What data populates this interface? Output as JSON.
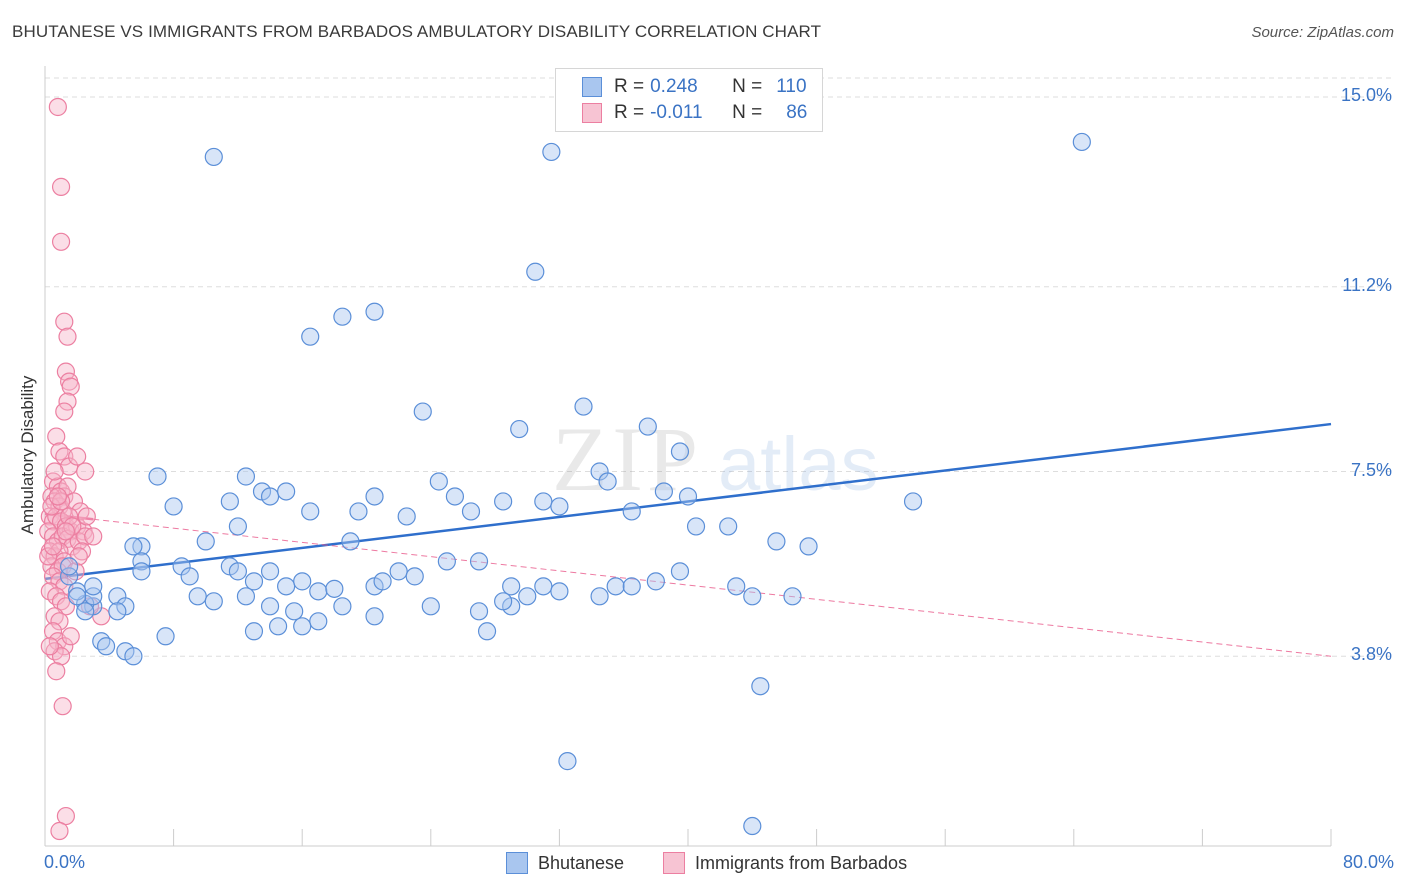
{
  "title": "BHUTANESE VS IMMIGRANTS FROM BARBADOS AMBULATORY DISABILITY CORRELATION CHART",
  "source": "Source: ZipAtlas.com",
  "watermark": {
    "zip": "ZIP",
    "atlas": "atlas"
  },
  "legend": {
    "series1": {
      "r_label": "R =",
      "r_value": "0.248",
      "n_label": "N =",
      "n_value": "110"
    },
    "series2": {
      "r_label": "R =",
      "r_value": "-0.011",
      "n_label": "N =",
      "n_value": "86"
    }
  },
  "chart_data": {
    "type": "scatter",
    "title": "BHUTANESE VS IMMIGRANTS FROM BARBADOS AMBULATORY DISABILITY CORRELATION CHART",
    "xlabel": "",
    "ylabel": "Ambulatory Disability",
    "xlim": [
      0,
      80
    ],
    "ylim": [
      0,
      15.5
    ],
    "x_tick_labels": {
      "left": "0.0%",
      "right": "80.0%"
    },
    "y_ticks": [
      {
        "value": 3.8,
        "label": "3.8%"
      },
      {
        "value": 7.5,
        "label": "7.5%"
      },
      {
        "value": 11.2,
        "label": "11.2%"
      },
      {
        "value": 15.0,
        "label": "15.0%"
      }
    ],
    "colors": {
      "bhutanese_fill": "#a9c6ef",
      "bhutanese_stroke": "#5b8fd8",
      "bhutanese_line": "#2f6fcc",
      "barbados_fill": "#f7b6c9",
      "barbados_stroke": "#ec7fa1",
      "barbados_line": "#e9578a",
      "tick_label": "#3a73c4",
      "grid": "#dddddd"
    },
    "series": [
      {
        "name": "Bhutanese",
        "trend": {
          "x": [
            0,
            80
          ],
          "y": [
            5.35,
            8.45
          ]
        },
        "points": [
          [
            10.5,
            13.8
          ],
          [
            31.5,
            13.9
          ],
          [
            64.5,
            14.1
          ],
          [
            30.5,
            11.5
          ],
          [
            16.5,
            10.2
          ],
          [
            18.5,
            10.6
          ],
          [
            20.5,
            10.7
          ],
          [
            23.5,
            8.7
          ],
          [
            33.5,
            8.8
          ],
          [
            29.5,
            8.35
          ],
          [
            37.5,
            8.4
          ],
          [
            12.5,
            7.4
          ],
          [
            39.5,
            7.9
          ],
          [
            34.5,
            7.5
          ],
          [
            35.0,
            7.3
          ],
          [
            7.0,
            7.4
          ],
          [
            13.5,
            7.1
          ],
          [
            14.0,
            7.0
          ],
          [
            15.0,
            7.1
          ],
          [
            11.5,
            6.9
          ],
          [
            8.0,
            6.8
          ],
          [
            16.5,
            6.7
          ],
          [
            19.0,
            6.1
          ],
          [
            19.5,
            6.7
          ],
          [
            20.5,
            7.0
          ],
          [
            22.5,
            6.6
          ],
          [
            24.5,
            7.3
          ],
          [
            25.5,
            7.0
          ],
          [
            26.5,
            6.7
          ],
          [
            28.5,
            6.9
          ],
          [
            31.0,
            6.9
          ],
          [
            32.0,
            6.8
          ],
          [
            36.5,
            6.7
          ],
          [
            38.5,
            7.1
          ],
          [
            40.0,
            7.0
          ],
          [
            40.5,
            6.4
          ],
          [
            42.5,
            6.4
          ],
          [
            47.5,
            6.0
          ],
          [
            54.0,
            6.9
          ],
          [
            12.0,
            6.4
          ],
          [
            10.0,
            6.1
          ],
          [
            6.0,
            6.0
          ],
          [
            5.5,
            6.0
          ],
          [
            6.0,
            5.7
          ],
          [
            8.5,
            5.6
          ],
          [
            9.0,
            5.4
          ],
          [
            11.5,
            5.6
          ],
          [
            12.0,
            5.5
          ],
          [
            13.0,
            5.3
          ],
          [
            15.0,
            5.2
          ],
          [
            16.0,
            5.3
          ],
          [
            17.0,
            5.1
          ],
          [
            18.0,
            5.15
          ],
          [
            20.5,
            5.2
          ],
          [
            21.0,
            5.3
          ],
          [
            22.0,
            5.5
          ],
          [
            23.0,
            5.4
          ],
          [
            25.0,
            5.7
          ],
          [
            27.0,
            5.7
          ],
          [
            29.0,
            5.2
          ],
          [
            30.0,
            5.0
          ],
          [
            31.0,
            5.2
          ],
          [
            32.0,
            5.1
          ],
          [
            34.5,
            5.0
          ],
          [
            35.5,
            5.2
          ],
          [
            36.5,
            5.2
          ],
          [
            38.0,
            5.3
          ],
          [
            39.5,
            5.5
          ],
          [
            9.5,
            5.0
          ],
          [
            10.5,
            4.9
          ],
          [
            12.5,
            5.0
          ],
          [
            14.0,
            4.8
          ],
          [
            15.5,
            4.7
          ],
          [
            17.0,
            4.5
          ],
          [
            18.5,
            4.8
          ],
          [
            20.5,
            4.6
          ],
          [
            24.0,
            4.8
          ],
          [
            27.0,
            4.7
          ],
          [
            4.5,
            5.0
          ],
          [
            5.0,
            4.8
          ],
          [
            4.5,
            4.7
          ],
          [
            3.0,
            4.8
          ],
          [
            2.5,
            4.85
          ],
          [
            3.0,
            5.0
          ],
          [
            2.0,
            5.1
          ],
          [
            1.5,
            5.4
          ],
          [
            3.0,
            5.2
          ],
          [
            2.0,
            5.0
          ],
          [
            1.5,
            5.6
          ],
          [
            2.5,
            4.7
          ],
          [
            3.5,
            4.1
          ],
          [
            3.8,
            4.0
          ],
          [
            5.0,
            3.9
          ],
          [
            5.5,
            3.8
          ],
          [
            7.5,
            4.2
          ],
          [
            13.0,
            4.3
          ],
          [
            16.0,
            4.4
          ],
          [
            14.5,
            4.4
          ],
          [
            27.5,
            4.3
          ],
          [
            29.0,
            4.8
          ],
          [
            28.5,
            4.9
          ],
          [
            45.5,
            6.1
          ],
          [
            43.0,
            5.2
          ],
          [
            44.0,
            5.0
          ],
          [
            46.5,
            5.0
          ],
          [
            44.5,
            3.2
          ],
          [
            32.5,
            1.7
          ],
          [
            44.0,
            0.4
          ],
          [
            14.0,
            5.5
          ],
          [
            6.0,
            5.5
          ]
        ]
      },
      {
        "name": "Immigrants from Barbados",
        "trend": {
          "x": [
            0,
            80
          ],
          "y": [
            6.65,
            3.8
          ]
        },
        "trend_solid_until_x": 3,
        "points": [
          [
            0.8,
            14.8
          ],
          [
            1.0,
            13.2
          ],
          [
            1.0,
            12.1
          ],
          [
            1.2,
            10.5
          ],
          [
            1.4,
            10.2
          ],
          [
            1.3,
            9.5
          ],
          [
            1.5,
            9.3
          ],
          [
            1.6,
            9.2
          ],
          [
            1.4,
            8.9
          ],
          [
            1.2,
            8.7
          ],
          [
            0.7,
            8.2
          ],
          [
            0.9,
            7.9
          ],
          [
            1.2,
            7.8
          ],
          [
            1.5,
            7.6
          ],
          [
            2.0,
            7.8
          ],
          [
            2.5,
            7.5
          ],
          [
            0.5,
            7.3
          ],
          [
            0.8,
            7.2
          ],
          [
            1.0,
            7.1
          ],
          [
            1.2,
            7.0
          ],
          [
            0.4,
            7.0
          ],
          [
            0.6,
            6.9
          ],
          [
            0.9,
            6.8
          ],
          [
            1.1,
            6.7
          ],
          [
            0.3,
            6.6
          ],
          [
            0.5,
            6.5
          ],
          [
            0.7,
            6.6
          ],
          [
            1.0,
            6.5
          ],
          [
            1.3,
            6.4
          ],
          [
            1.6,
            6.3
          ],
          [
            2.0,
            6.4
          ],
          [
            2.4,
            6.3
          ],
          [
            0.2,
            6.3
          ],
          [
            0.5,
            6.2
          ],
          [
            0.8,
            6.1
          ],
          [
            1.1,
            6.2
          ],
          [
            1.4,
            6.15
          ],
          [
            1.7,
            6.0
          ],
          [
            2.1,
            6.1
          ],
          [
            2.5,
            6.2
          ],
          [
            0.3,
            5.9
          ],
          [
            0.6,
            5.8
          ],
          [
            0.9,
            5.9
          ],
          [
            1.2,
            5.7
          ],
          [
            0.4,
            5.6
          ],
          [
            0.8,
            5.5
          ],
          [
            1.1,
            5.6
          ],
          [
            0.5,
            5.4
          ],
          [
            0.9,
            5.3
          ],
          [
            1.2,
            5.2
          ],
          [
            0.3,
            5.1
          ],
          [
            0.7,
            5.0
          ],
          [
            1.0,
            4.9
          ],
          [
            1.3,
            4.8
          ],
          [
            0.6,
            4.6
          ],
          [
            0.9,
            4.5
          ],
          [
            0.5,
            4.3
          ],
          [
            0.8,
            4.1
          ],
          [
            1.2,
            4.0
          ],
          [
            0.6,
            3.9
          ],
          [
            1.0,
            3.8
          ],
          [
            0.7,
            3.5
          ],
          [
            1.1,
            2.8
          ],
          [
            1.3,
            0.6
          ],
          [
            0.9,
            0.3
          ],
          [
            1.4,
            7.2
          ],
          [
            1.8,
            6.9
          ],
          [
            2.2,
            6.7
          ],
          [
            0.4,
            6.8
          ],
          [
            0.6,
            7.5
          ],
          [
            1.9,
            5.5
          ],
          [
            2.3,
            5.9
          ],
          [
            3.0,
            6.2
          ],
          [
            3.5,
            4.6
          ],
          [
            2.8,
            4.8
          ],
          [
            1.6,
            4.2
          ],
          [
            0.3,
            4.0
          ],
          [
            1.5,
            6.6
          ],
          [
            0.2,
            5.8
          ],
          [
            1.0,
            6.9
          ],
          [
            0.8,
            7.0
          ],
          [
            1.7,
            6.4
          ],
          [
            2.6,
            6.6
          ],
          [
            0.5,
            6.0
          ],
          [
            1.3,
            6.3
          ],
          [
            2.1,
            5.8
          ]
        ]
      }
    ]
  },
  "bottom_legend": {
    "series1": "Bhutanese",
    "series2": "Immigrants from Barbados"
  }
}
